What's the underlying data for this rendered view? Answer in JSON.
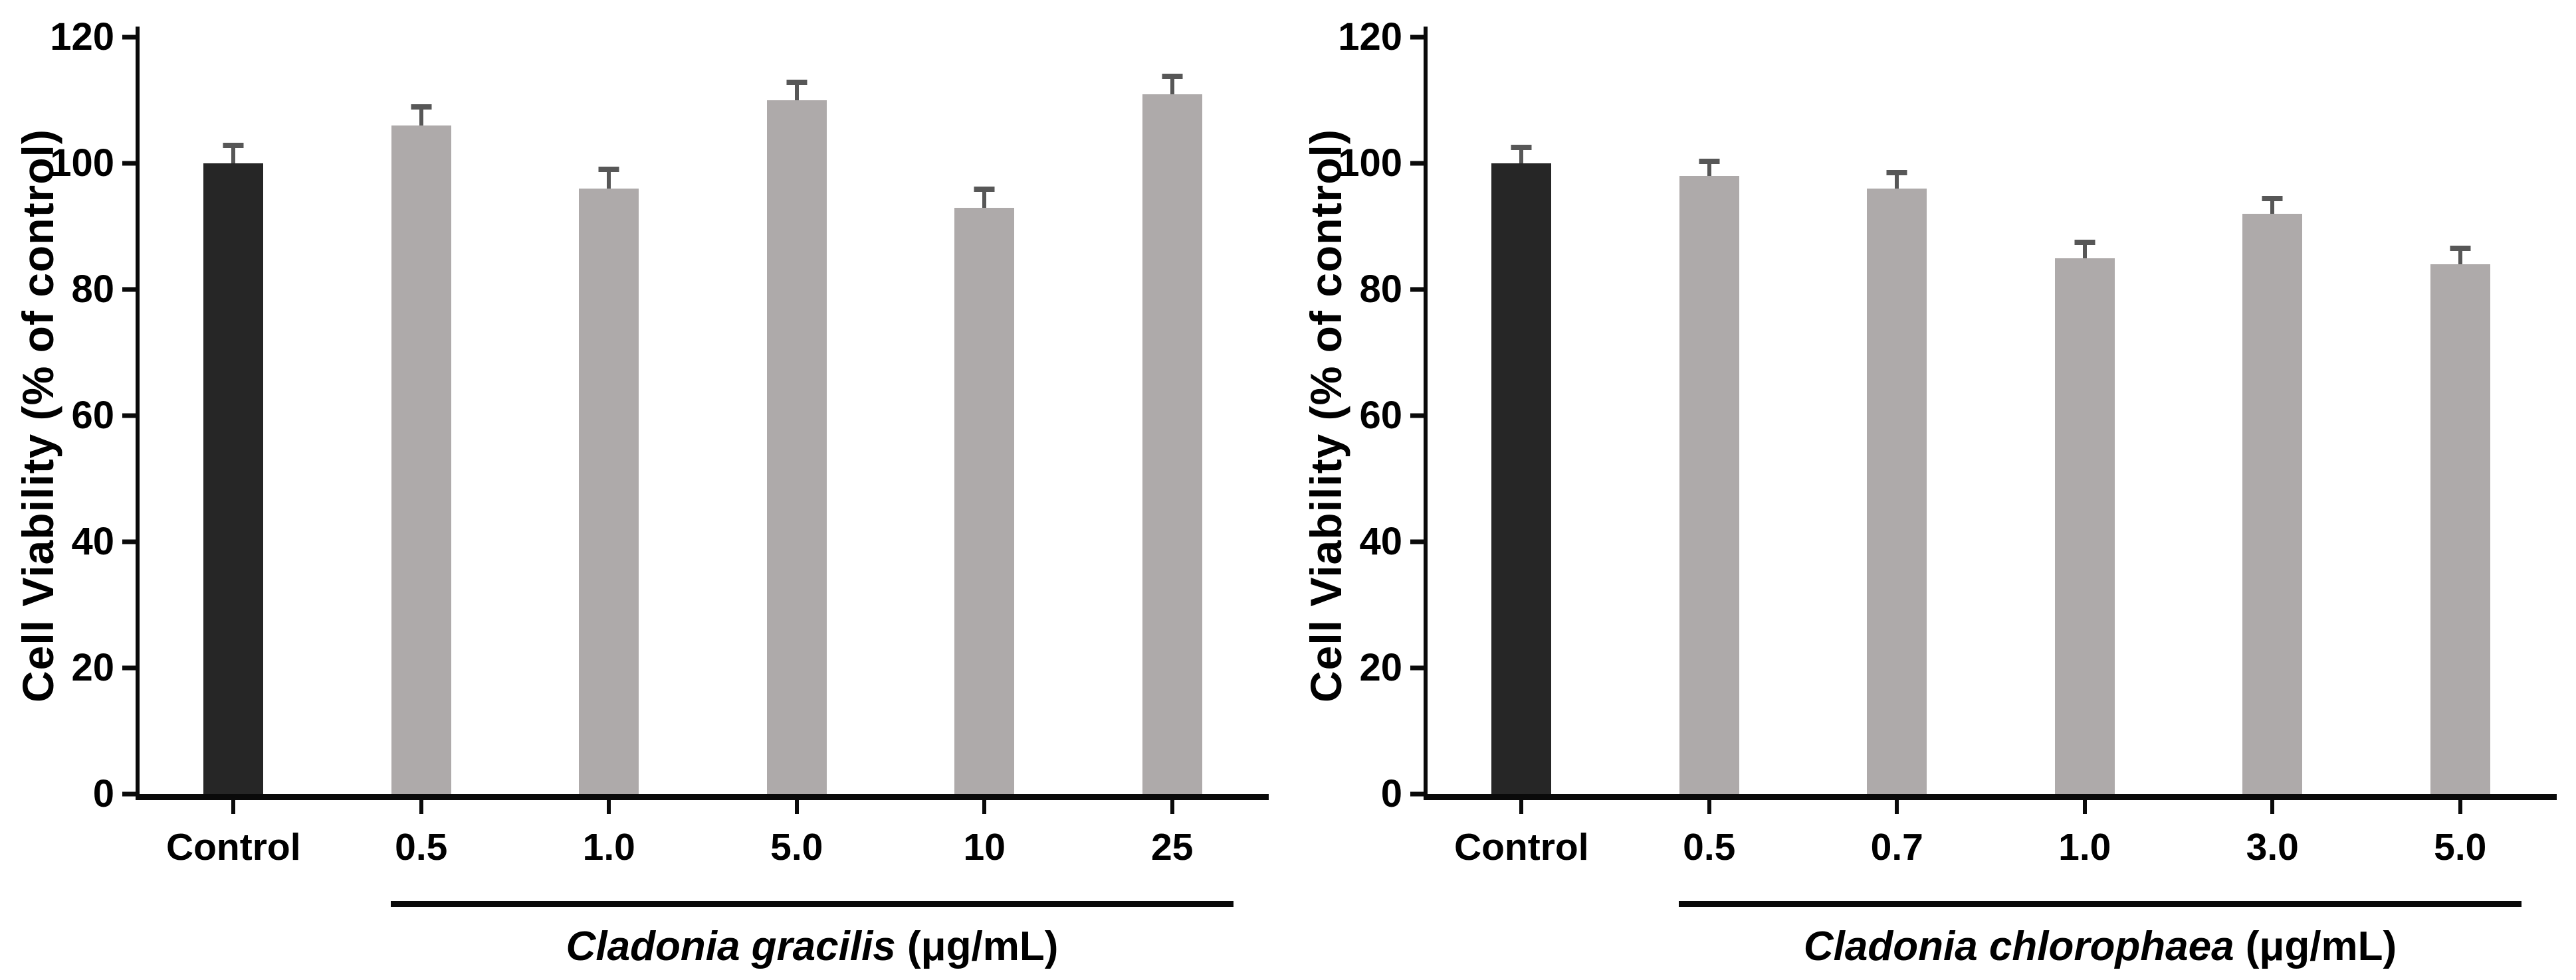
{
  "figure": {
    "background": "#ffffff",
    "description_visible_text_only": true
  },
  "colors": {
    "axis": "#0a0a0a",
    "control_bar": "#262626",
    "treated_bar": "#aeaaaa",
    "error_bar": "#575757",
    "text": "#000000"
  },
  "chart_data": [
    {
      "type": "bar",
      "title": "",
      "ylabel": "Cell Viability (% of control)",
      "xlabel": "Cladonia gracilis (μg/mL)",
      "xlabel_italic": "Cladonia gracilis",
      "xlabel_units": "(μg/mL)",
      "ylim": [
        0,
        120
      ],
      "ytick_labels": [
        "0",
        "20",
        "40",
        "60",
        "80",
        "100",
        "120"
      ],
      "grid": false,
      "legend": false,
      "categories": [
        "Control",
        "0.5",
        "1.0",
        "5.0",
        "10",
        "25"
      ],
      "values": [
        100,
        106,
        96,
        110,
        93,
        111
      ],
      "errors_plus": [
        3.3,
        3.4,
        3.5,
        3.3,
        3.3,
        3.2
      ],
      "bracket_spans_categories": [
        "0.5",
        "25"
      ],
      "bar_style_by_category": [
        "control",
        "treated",
        "treated",
        "treated",
        "treated",
        "treated"
      ]
    },
    {
      "type": "bar",
      "title": "",
      "ylabel": "Cell Viability (% of control)",
      "xlabel": "Cladonia chlorophaea (μg/mL)",
      "xlabel_italic": "Cladonia chlorophaea",
      "xlabel_units": "(μg/mL)",
      "ylim": [
        0,
        120
      ],
      "ytick_labels": [
        "0",
        "20",
        "40",
        "60",
        "80",
        "100",
        "120"
      ],
      "grid": false,
      "legend": false,
      "categories": [
        "Control",
        "0.5",
        "0.7",
        "1.0",
        "3.0",
        "5.0"
      ],
      "values": [
        100,
        98,
        96,
        85,
        92,
        84
      ],
      "errors_plus": [
        2.9,
        2.7,
        2.9,
        2.9,
        2.8,
        3.0
      ],
      "bracket_spans_categories": [
        "0.5",
        "5.0"
      ],
      "bar_style_by_category": [
        "control",
        "treated",
        "treated",
        "treated",
        "treated",
        "treated"
      ]
    }
  ]
}
